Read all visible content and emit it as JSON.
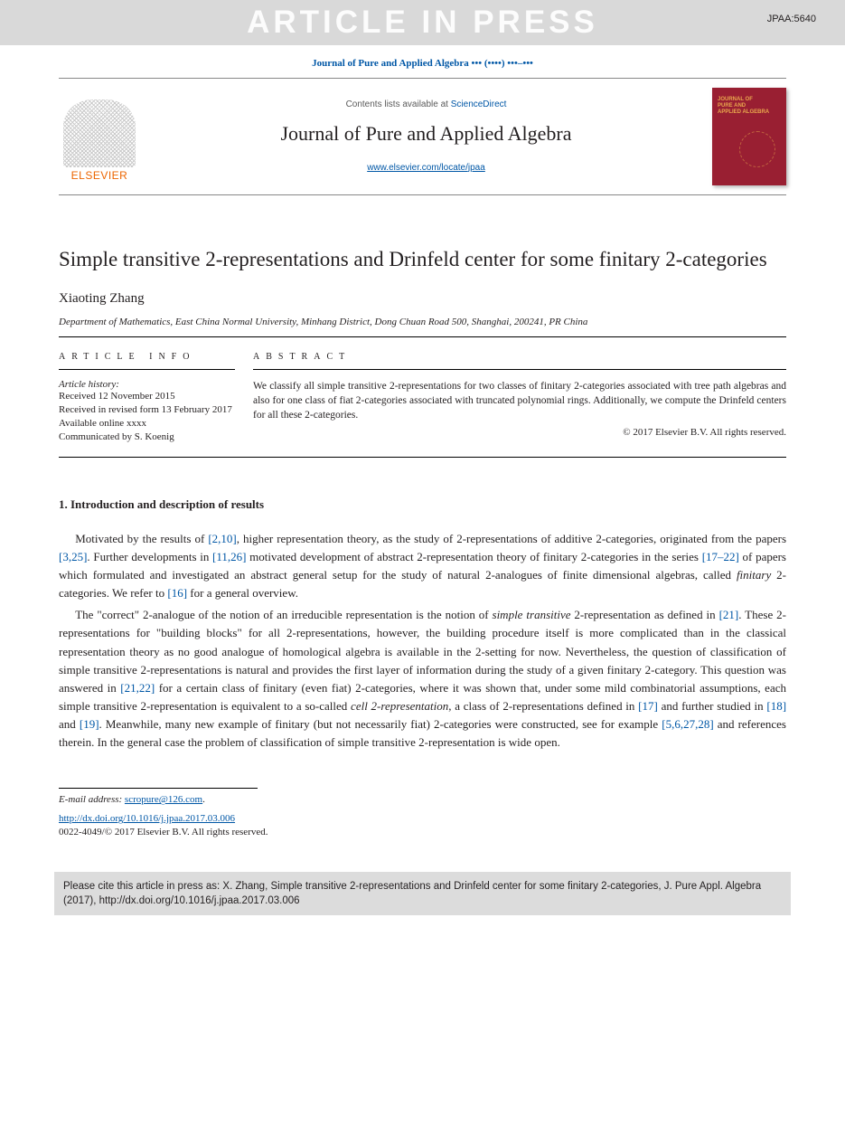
{
  "banner": {
    "text": "ARTICLE IN PRESS",
    "ref": "JPAA:5640",
    "background_color": "#d9d9d9",
    "text_color": "#fcfcfc"
  },
  "citation_line": "Journal of Pure and Applied Algebra ••• (••••) •••–•••",
  "header": {
    "contents_prefix": "Contents lists available at ",
    "contents_link": "ScienceDirect",
    "journal_title": "Journal of Pure and Applied Algebra",
    "journal_url": "www.elsevier.com/locate/jpaa",
    "publisher_word": "ELSEVIER",
    "cover_label": "JOURNAL OF\nPURE AND\nAPPLIED ALGEBRA",
    "cover_bg": "#991f32",
    "cover_label_color": "#e8a64d"
  },
  "article": {
    "title": "Simple transitive 2-representations and Drinfeld center for some finitary 2-categories",
    "author": "Xiaoting Zhang",
    "affiliation": "Department of Mathematics, East China Normal University, Minhang District, Dong Chuan Road 500, Shanghai, 200241, PR China"
  },
  "info": {
    "heading": "article info",
    "history_label": "Article history:",
    "items": [
      "Received 12 November 2015",
      "Received in revised form 13 February 2017",
      "Available online xxxx",
      "Communicated by S. Koenig"
    ]
  },
  "abstract": {
    "heading": "abstract",
    "text": "We classify all simple transitive 2-representations for two classes of finitary 2-categories associated with tree path algebras and also for one class of fiat 2-categories associated with truncated polynomial rings. Additionally, we compute the Drinfeld centers for all these 2-categories.",
    "copyright": "© 2017 Elsevier B.V. All rights reserved."
  },
  "section1": {
    "heading": "1. Introduction and description of results",
    "para1_parts": [
      "Motivated by the results of ",
      "[2,10]",
      ", higher representation theory, as the study of 2-representations of additive 2-categories, originated from the papers ",
      "[3,25]",
      ". Further developments in ",
      "[11,26]",
      " motivated development of abstract 2-representation theory of finitary 2-categories in the series ",
      "[17–22]",
      " of papers which formulated and investigated an abstract general setup for the study of natural 2-analogues of finite dimensional algebras, called ",
      "finitary",
      " 2-categories. We refer to ",
      "[16]",
      " for a general overview."
    ],
    "para2_parts": [
      "The \"correct\" 2-analogue of the notion of an irreducible representation is the notion of ",
      "simple transitive",
      " 2-representation as defined in ",
      "[21]",
      ". These 2-representations for \"building blocks\" for all 2-representations, however, the building procedure itself is more complicated than in the classical representation theory as no good analogue of homological algebra is available in the 2-setting for now. Nevertheless, the question of classification of simple transitive 2-representations is natural and provides the first layer of information during the study of a given finitary 2-category. This question was answered in ",
      "[21,22]",
      " for a certain class of finitary (even fiat) 2-categories, where it was shown that, under some mild combinatorial assumptions, each simple transitive 2-representation is equivalent to a so-called ",
      "cell 2-representation",
      ", a class of 2-representations defined in ",
      "[17]",
      " and further studied in ",
      "[18]",
      " and ",
      "[19]",
      ". Meanwhile, many new example of finitary (but not necessarily fiat) 2-categories were constructed, see for example ",
      "[5,6,27,28]",
      " and references therein. In the general case the problem of classification of simple transitive 2-representation is wide open."
    ]
  },
  "footer": {
    "email_label": "E-mail address: ",
    "email": "scropure@126.com",
    "email_suffix": ".",
    "doi": "http://dx.doi.org/10.1016/j.jpaa.2017.03.006",
    "issn_line": "0022-4049/© 2017 Elsevier B.V. All rights reserved."
  },
  "cite_box": "Please cite this article in press as: X. Zhang, Simple transitive 2-representations and Drinfeld center for some finitary 2-categories, J. Pure Appl. Algebra (2017), http://dx.doi.org/10.1016/j.jpaa.2017.03.006",
  "colors": {
    "link": "#0057a6",
    "text": "#231f20",
    "publisher_orange": "#ec6500"
  }
}
